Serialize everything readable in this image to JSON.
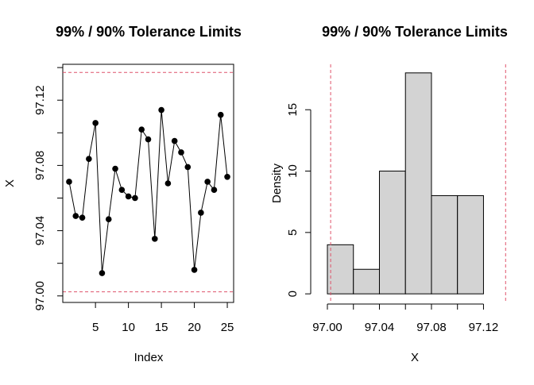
{
  "colors": {
    "limit_line": "#DF536B",
    "bar_fill": "#D3D3D3",
    "ink": "#000000"
  },
  "chart_data": [
    {
      "type": "scatter",
      "title": "99% / 90% Tolerance Limits",
      "xlabel": "Index",
      "ylabel": "X",
      "xlim": [
        0.04,
        25.96
      ],
      "ylim": [
        96.996,
        97.142
      ],
      "xticks": [
        5,
        10,
        15,
        20,
        25
      ],
      "xtick_labels": [
        "5",
        "10",
        "15",
        "20",
        "25"
      ],
      "yticks": [
        97.0,
        97.04,
        97.08,
        97.12
      ],
      "ytick_labels": [
        "97.00",
        "97.04",
        "97.08",
        "97.12"
      ],
      "x": [
        1,
        2,
        3,
        4,
        5,
        6,
        7,
        8,
        9,
        10,
        11,
        12,
        13,
        14,
        15,
        16,
        17,
        18,
        19,
        20,
        21,
        22,
        23,
        24,
        25
      ],
      "values": [
        97.07,
        97.049,
        97.048,
        97.084,
        97.106,
        97.014,
        97.047,
        97.078,
        97.065,
        97.061,
        97.06,
        97.102,
        97.096,
        97.035,
        97.114,
        97.069,
        97.095,
        97.088,
        97.079,
        97.016,
        97.051,
        97.07,
        97.065,
        97.111,
        97.073
      ],
      "connect_points": true,
      "tolerance_limits": [
        97.0025,
        97.137
      ],
      "grid": false
    },
    {
      "type": "bar",
      "subtype": "histogram",
      "title": "99% / 90% Tolerance Limits",
      "xlabel": "X",
      "ylabel": "Density",
      "xlim": [
        96.9945,
        97.1405
      ],
      "ylim": [
        -0.7,
        18.7
      ],
      "bins": [
        [
          97.0,
          97.02
        ],
        [
          97.02,
          97.04
        ],
        [
          97.04,
          97.06
        ],
        [
          97.06,
          97.08
        ],
        [
          97.08,
          97.1
        ],
        [
          97.1,
          97.12
        ]
      ],
      "values": [
        4,
        2,
        10,
        18,
        8,
        8
      ],
      "xticks": [
        97.0,
        97.04,
        97.08,
        97.12
      ],
      "xtick_labels": [
        "97.00",
        "97.04",
        "97.08",
        "97.12"
      ],
      "minor_xticks": [
        97.02,
        97.06,
        97.1
      ],
      "yticks": [
        0,
        5,
        10,
        15
      ],
      "ytick_labels": [
        "0",
        "5",
        "10",
        "15"
      ],
      "tolerance_limits": [
        97.0025,
        97.137
      ],
      "grid": false
    }
  ]
}
